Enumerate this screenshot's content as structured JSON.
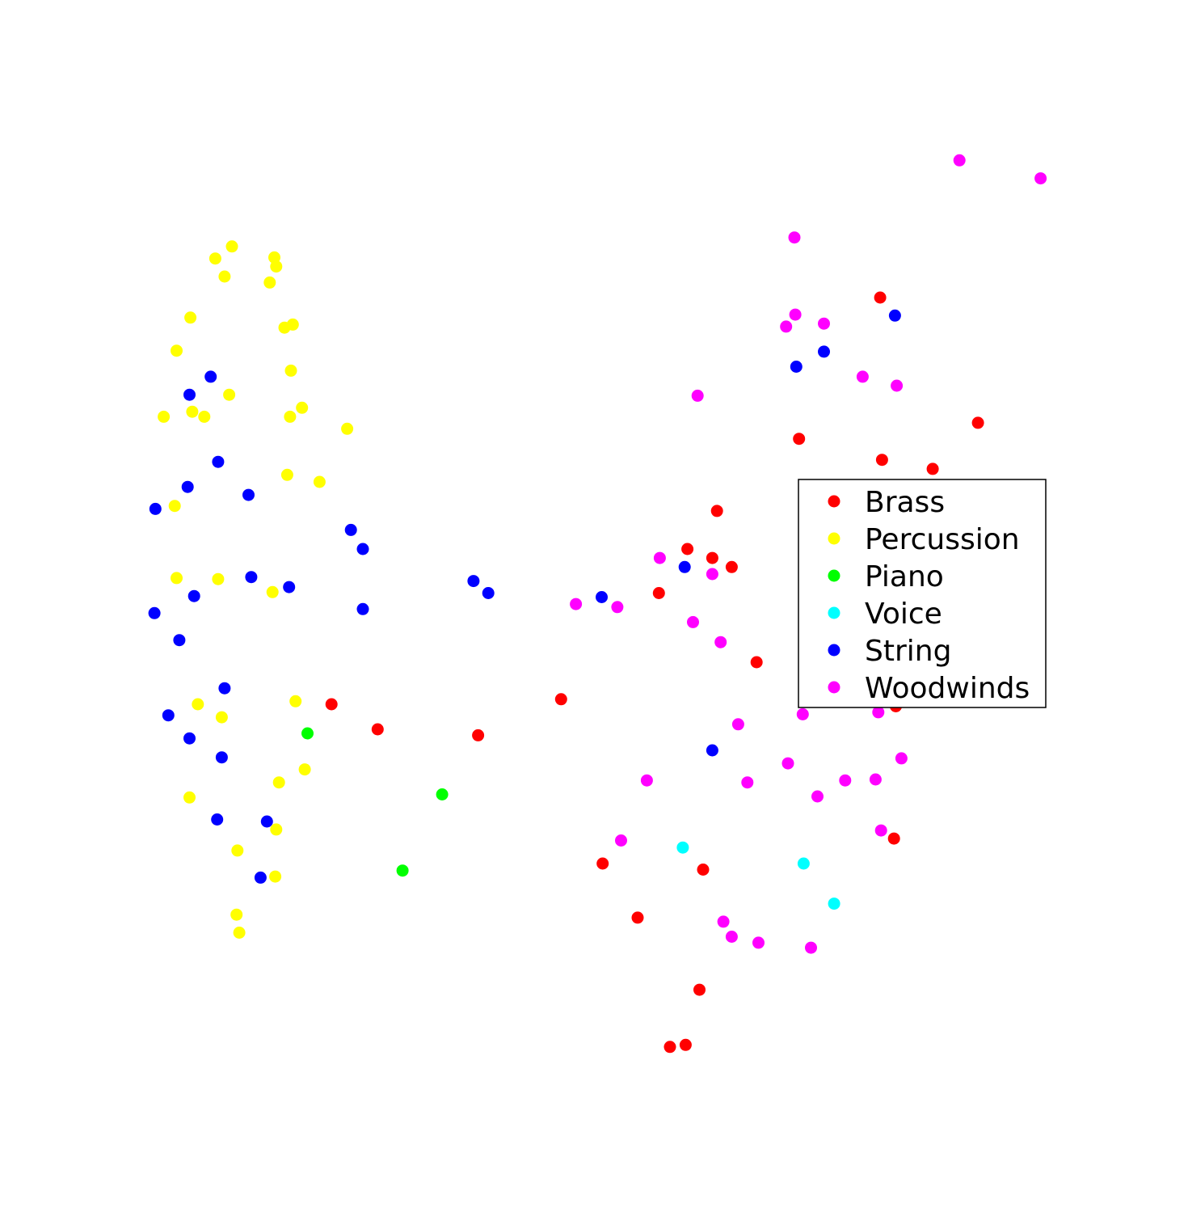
{
  "chart_data": {
    "type": "scatter",
    "title": "",
    "xlabel": "",
    "ylabel": "",
    "axes_visible": false,
    "grid": false,
    "xlim": [
      0,
      1000
    ],
    "ylim": [
      0,
      1000
    ],
    "legend": {
      "placement": "center-right",
      "entries": [
        "Brass",
        "Percussion",
        "Piano",
        "Voice",
        "String",
        "Woodwinds"
      ]
    },
    "series": [
      {
        "name": "Brass",
        "color": "#ff0000",
        "points": [
          [
            788,
            795
          ],
          [
            700,
            654
          ],
          [
            894,
            670
          ],
          [
            790,
            633
          ],
          [
            845,
            624
          ],
          [
            611,
            582
          ],
          [
            579,
            544
          ],
          [
            606,
            535
          ],
          [
            627,
            526
          ],
          [
            548,
            500
          ],
          [
            654,
            431
          ],
          [
            805,
            387
          ],
          [
            193,
            389
          ],
          [
            243,
            364
          ],
          [
            352,
            358
          ],
          [
            442,
            394
          ],
          [
            487,
            230
          ],
          [
            596,
            224
          ],
          [
            525,
            176
          ],
          [
            592,
            104
          ],
          [
            803,
            255
          ],
          [
            577,
            49
          ],
          [
            560,
            47
          ]
        ]
      },
      {
        "name": "Percussion",
        "color": "#ffff00",
        "points": [
          [
            85,
            846
          ],
          [
            67,
            834
          ],
          [
            131,
            835
          ],
          [
            77,
            816
          ],
          [
            126,
            810
          ],
          [
            133,
            826
          ],
          [
            40,
            775
          ],
          [
            142,
            765
          ],
          [
            151,
            768
          ],
          [
            25,
            742
          ],
          [
            149,
            722
          ],
          [
            82,
            698
          ],
          [
            42,
            681
          ],
          [
            11,
            676
          ],
          [
            55,
            676
          ],
          [
            148,
            676
          ],
          [
            161,
            685
          ],
          [
            210,
            664
          ],
          [
            145,
            618
          ],
          [
            180,
            611
          ],
          [
            23,
            587
          ],
          [
            25,
            515
          ],
          [
            70,
            514
          ],
          [
            129,
            501
          ],
          [
            48,
            389
          ],
          [
            154,
            392
          ],
          [
            74,
            376
          ],
          [
            164,
            324
          ],
          [
            136,
            311
          ],
          [
            39,
            296
          ],
          [
            133,
            264
          ],
          [
            91,
            243
          ],
          [
            132,
            217
          ],
          [
            90,
            179
          ],
          [
            93,
            161
          ]
        ]
      },
      {
        "name": "Piano",
        "color": "#00ff00",
        "points": [
          [
            167,
            360
          ],
          [
            313,
            299
          ],
          [
            270,
            223
          ]
        ]
      },
      {
        "name": "Voice",
        "color": "#00ffff",
        "points": [
          [
            574,
            246
          ],
          [
            705,
            230
          ],
          [
            738,
            190
          ]
        ]
      },
      {
        "name": "String",
        "color": "#0000ff",
        "points": [
          [
            804,
            777
          ],
          [
            727,
            741
          ],
          [
            697,
            726
          ],
          [
            62,
            716
          ],
          [
            39,
            698
          ],
          [
            70,
            631
          ],
          [
            37,
            606
          ],
          [
            103,
            598
          ],
          [
            2,
            584
          ],
          [
            214,
            563
          ],
          [
            227,
            544
          ],
          [
            106,
            516
          ],
          [
            44,
            497
          ],
          [
            147,
            506
          ],
          [
            347,
            512
          ],
          [
            363,
            500
          ],
          [
            486,
            496
          ],
          [
            576,
            526
          ],
          [
            1,
            480
          ],
          [
            227,
            484
          ],
          [
            28,
            453
          ],
          [
            77,
            405
          ],
          [
            16,
            378
          ],
          [
            39,
            355
          ],
          [
            74,
            336
          ],
          [
            606,
            343
          ],
          [
            69,
            274
          ],
          [
            123,
            272
          ],
          [
            116,
            216
          ]
        ]
      },
      {
        "name": "Woodwinds",
        "color": "#ff00ff",
        "points": [
          [
            874,
            932
          ],
          [
            962,
            914
          ],
          [
            695,
            855
          ],
          [
            696,
            778
          ],
          [
            686,
            766
          ],
          [
            727,
            769
          ],
          [
            769,
            716
          ],
          [
            806,
            707
          ],
          [
            590,
            697
          ],
          [
            549,
            535
          ],
          [
            606,
            519
          ],
          [
            585,
            471
          ],
          [
            458,
            489
          ],
          [
            503,
            486
          ],
          [
            615,
            451
          ],
          [
            846,
            416
          ],
          [
            634,
            369
          ],
          [
            704,
            379
          ],
          [
            786,
            381
          ],
          [
            688,
            330
          ],
          [
            811,
            335
          ],
          [
            535,
            313
          ],
          [
            644,
            311
          ],
          [
            750,
            313
          ],
          [
            720,
            297
          ],
          [
            783,
            314
          ],
          [
            789,
            263
          ],
          [
            507,
            253
          ],
          [
            618,
            172
          ],
          [
            627,
            157
          ],
          [
            656,
            151
          ],
          [
            713,
            146
          ]
        ]
      }
    ]
  }
}
